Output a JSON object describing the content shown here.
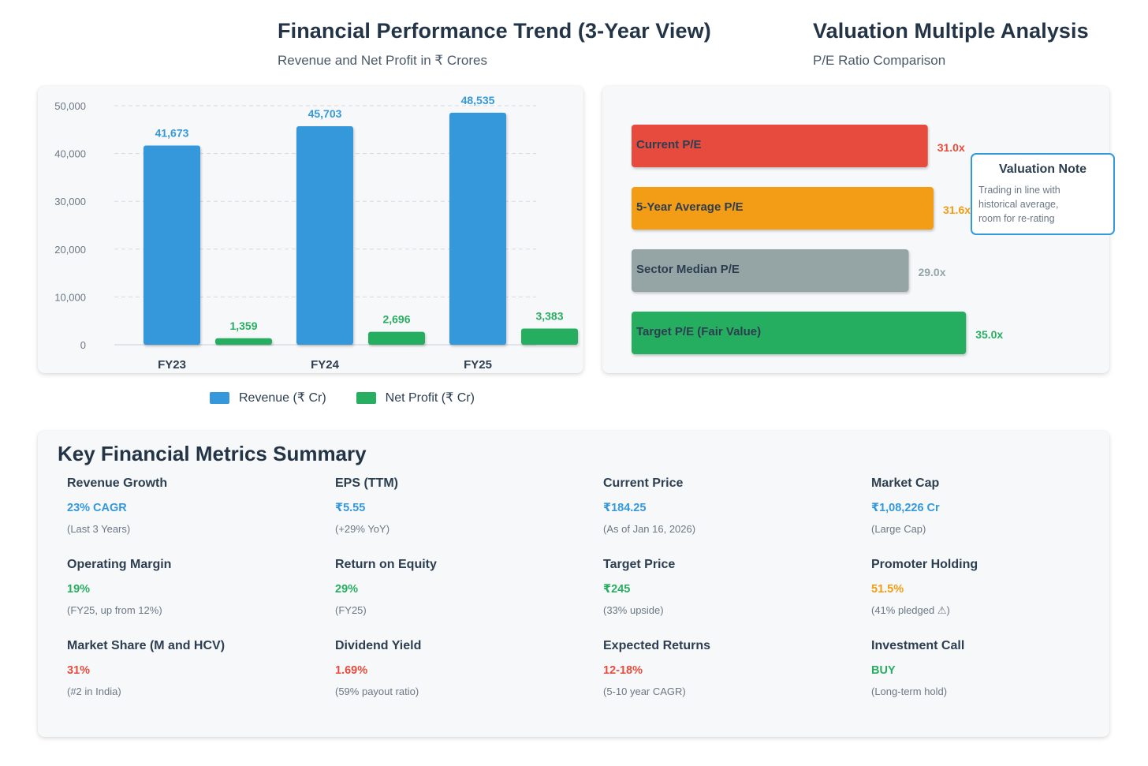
{
  "colors": {
    "revenue": "#3498db",
    "profit": "#27ae60",
    "red": "#e74c3c",
    "orange": "#f39c12",
    "gray": "#95a5a6",
    "green": "#27ae60",
    "blue": "#3498db"
  },
  "performance": {
    "title": "Financial Performance Trend (3-Year View)",
    "subtitle": "Revenue and Net Profit in ₹ Crores"
  },
  "valuation": {
    "title": "Valuation Multiple Analysis",
    "subtitle": "P/E Ratio Comparison",
    "note": {
      "title": "Valuation Note",
      "lines": [
        "Trading in line with",
        "historical average,",
        "room for re-rating"
      ]
    }
  },
  "chart_data": [
    {
      "type": "bar",
      "title": "Financial Performance Trend (3-Year View)",
      "subtitle": "Revenue and Net Profit in ₹ Crores",
      "categories": [
        "FY23",
        "FY24",
        "FY25"
      ],
      "series": [
        {
          "name": "Revenue (₹ Cr)",
          "values": [
            41673,
            45703,
            48535
          ],
          "labels": [
            "41,673",
            "45,703",
            "48,535"
          ],
          "color": "#3498db"
        },
        {
          "name": "Net Profit (₹ Cr)",
          "values": [
            1359,
            2696,
            3383
          ],
          "labels": [
            "1,359",
            "2,696",
            "3,383"
          ],
          "color": "#27ae60"
        }
      ],
      "yticks": [
        0,
        10000,
        20000,
        30000,
        40000,
        50000
      ],
      "ytick_labels": [
        "0",
        "10,000",
        "20,000",
        "30,000",
        "40,000",
        "50,000"
      ],
      "ylim": [
        0,
        50000
      ],
      "grid": true,
      "legend": "bottom"
    },
    {
      "type": "bar",
      "orientation": "horizontal",
      "title": "Valuation Multiple Analysis",
      "subtitle": "P/E Ratio Comparison",
      "categories": [
        "Current P/E",
        "5-Year Average P/E",
        "Sector Median P/E",
        "Target P/E (Fair Value)"
      ],
      "values": [
        31.0,
        31.6,
        29.0,
        35.0
      ],
      "labels": [
        "31.0x",
        "31.6x",
        "29.0x",
        "35.0x"
      ],
      "colors": [
        "#e74c3c",
        "#f39c12",
        "#95a5a6",
        "#27ae60"
      ]
    }
  ],
  "summary": {
    "title": "Key Financial Metrics Summary",
    "metrics": [
      {
        "label": "Revenue Growth",
        "value": "23% CAGR",
        "sub": "(Last 3 Years)",
        "color": "#3498db"
      },
      {
        "label": "EPS (TTM)",
        "value": "₹5.55",
        "sub": "(+29% YoY)",
        "color": "#3498db"
      },
      {
        "label": "Current Price",
        "value": "₹184.25",
        "sub": "(As of Jan 16, 2026)",
        "color": "#3498db"
      },
      {
        "label": "Market Cap",
        "value": "₹1,08,226 Cr",
        "sub": "(Large Cap)",
        "color": "#3498db"
      },
      {
        "label": "Operating Margin",
        "value": "19%",
        "sub": "(FY25, up from 12%)",
        "color": "#27ae60"
      },
      {
        "label": "Return on Equity",
        "value": "29%",
        "sub": "(FY25)",
        "color": "#27ae60"
      },
      {
        "label": "Target Price",
        "value": "₹245",
        "sub": "(33% upside)",
        "color": "#27ae60"
      },
      {
        "label": "Promoter Holding",
        "value": "51.5%",
        "sub": "(41% pledged ⚠)",
        "color": "#f39c12"
      },
      {
        "label": "Market Share (M and HCV)",
        "value": "31%",
        "sub": "(#2 in India)",
        "color": "#e74c3c"
      },
      {
        "label": "Dividend Yield",
        "value": "1.69%",
        "sub": "(59% payout ratio)",
        "color": "#e74c3c"
      },
      {
        "label": "Expected Returns",
        "value": "12-18%",
        "sub": "(5-10 year CAGR)",
        "color": "#e74c3c"
      },
      {
        "label": "Investment Call",
        "value": "BUY",
        "sub": "(Long-term hold)",
        "color": "#27ae60"
      }
    ]
  }
}
